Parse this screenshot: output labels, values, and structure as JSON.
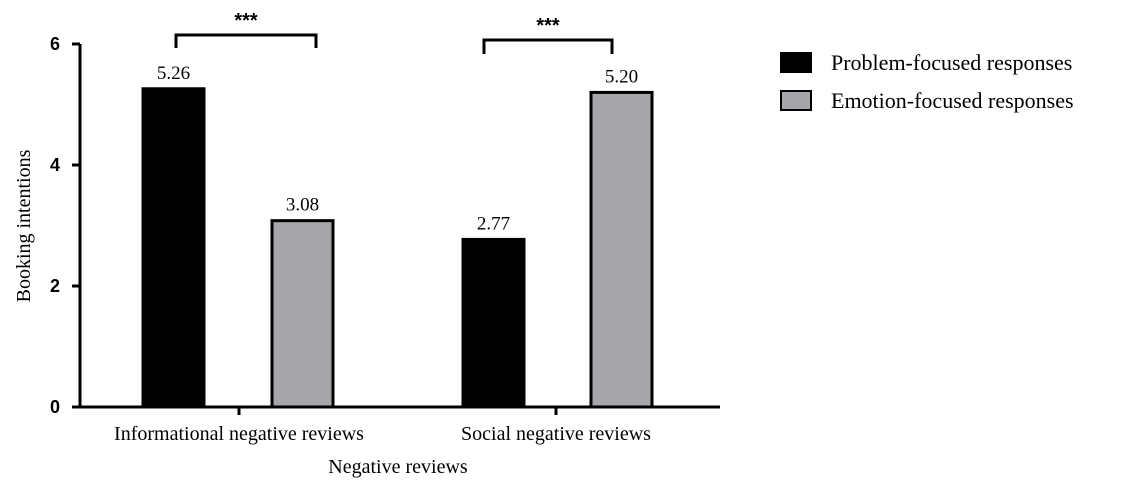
{
  "chart_data": {
    "type": "bar",
    "categories": [
      "Informational negative reviews",
      "Social negative reviews"
    ],
    "series": [
      {
        "name": "Problem-focused responses",
        "values": [
          5.26,
          2.77
        ],
        "color": "#000000"
      },
      {
        "name": "Emotion-focused responses",
        "values": [
          3.08,
          5.2
        ],
        "color": "#a6a6aa"
      }
    ],
    "value_labels": [
      [
        "5.26",
        "2.77"
      ],
      [
        "3.08",
        "5.20"
      ]
    ],
    "xlabel": "Negative reviews",
    "ylabel": "Booking intentions",
    "ylim": [
      0,
      6
    ],
    "yticks": [
      "0",
      "2",
      "4",
      "6"
    ],
    "significance": [
      "***",
      "***"
    ],
    "legend_position": "top-right",
    "grid": false
  }
}
